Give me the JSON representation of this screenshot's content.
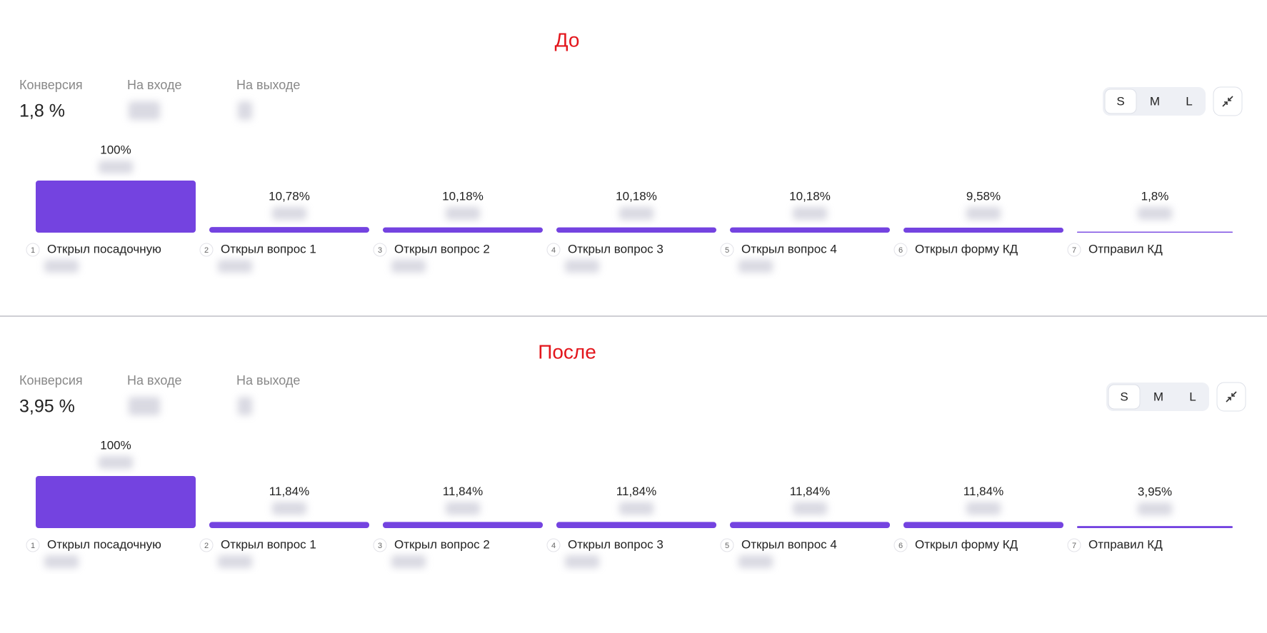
{
  "chart_data": [
    {
      "type": "funnel",
      "title": "До",
      "stats": [
        {
          "label": "Конверсия",
          "value": "1,8 %"
        },
        {
          "label": "На входе"
        },
        {
          "label": "На выходе"
        }
      ],
      "size_options": [
        "S",
        "M",
        "L"
      ],
      "step_numbers": [
        1,
        2,
        3,
        4,
        5,
        6,
        7
      ],
      "categories": [
        "Открыл посадочную",
        "Открыл вопрос 1",
        "Открыл вопрос 2",
        "Открыл вопрос 3",
        "Открыл вопрос 4",
        "Открыл форму КД",
        "Отправил КД"
      ],
      "values": [
        100,
        10.78,
        10.18,
        10.18,
        10.18,
        9.58,
        1.8
      ],
      "value_labels": [
        "100%",
        "10,78%",
        "10,18%",
        "10,18%",
        "10,18%",
        "9,58%",
        "1,8%"
      ],
      "color": "#7443e0",
      "ylim": [
        0,
        100
      ]
    },
    {
      "type": "funnel",
      "title": "После",
      "stats": [
        {
          "label": "Конверсия",
          "value": "3,95 %"
        },
        {
          "label": "На входе"
        },
        {
          "label": "На выходе"
        }
      ],
      "size_options": [
        "S",
        "M",
        "L"
      ],
      "step_numbers": [
        1,
        2,
        3,
        4,
        5,
        6,
        7
      ],
      "categories": [
        "Открыл посадочную",
        "Открыл вопрос 1",
        "Открыл вопрос 2",
        "Открыл вопрос 3",
        "Открыл вопрос 4",
        "Открыл форму КД",
        "Отправил КД"
      ],
      "values": [
        100,
        11.84,
        11.84,
        11.84,
        11.84,
        11.84,
        3.95
      ],
      "value_labels": [
        "100%",
        "11,84%",
        "11,84%",
        "11,84%",
        "11,84%",
        "11,84%",
        "3,95%"
      ],
      "color": "#7443e0",
      "ylim": [
        0,
        100
      ]
    }
  ]
}
